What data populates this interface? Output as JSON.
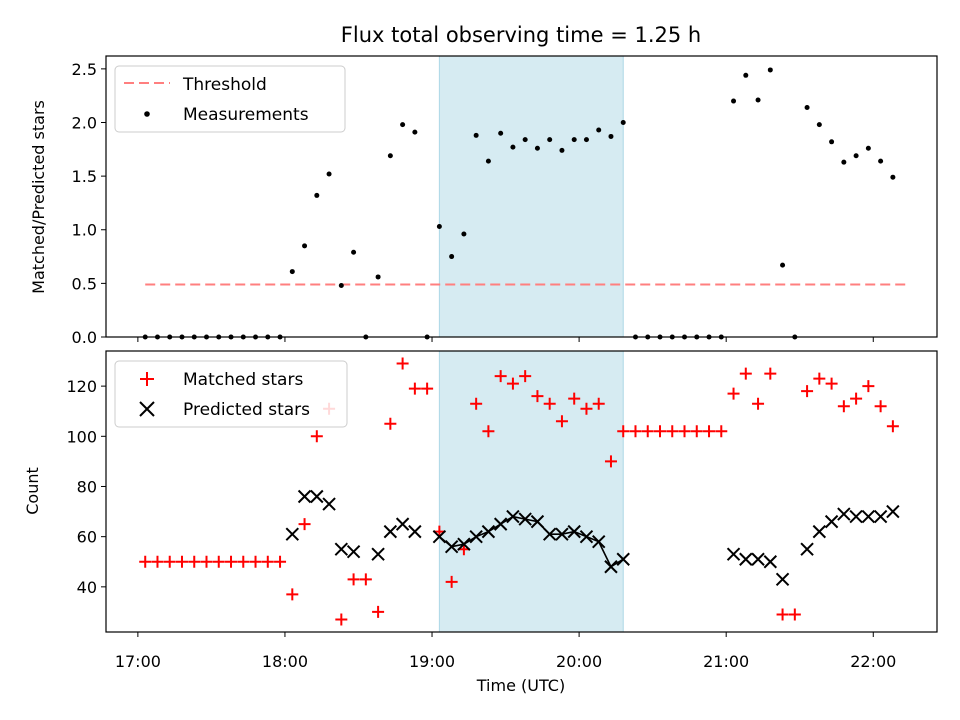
{
  "chart_data": [
    {
      "type": "scatter",
      "title": "Flux total observing time = 1.25 h",
      "xlabel": "",
      "ylabel": "Matched/Predicted stars",
      "ylim": [
        0,
        2.62
      ],
      "yticks": [
        "0.0",
        "0.5",
        "1.0",
        "1.5",
        "2.0",
        "2.5"
      ],
      "legend_position": "top-left",
      "highlight_span": {
        "start": "19:03",
        "end": "20:18"
      },
      "threshold": {
        "name": "Threshold",
        "value": 0.49,
        "x_start": "17:03",
        "x_end": "22:14",
        "color": "#ff7f7f"
      },
      "series": [
        {
          "name": "Measurements",
          "color": "#000000",
          "points": [
            [
              "17:03",
              0
            ],
            [
              "17:08",
              0
            ],
            [
              "17:13",
              0
            ],
            [
              "17:18",
              0
            ],
            [
              "17:23",
              0
            ],
            [
              "17:28",
              0
            ],
            [
              "17:33",
              0
            ],
            [
              "17:38",
              0
            ],
            [
              "17:43",
              0
            ],
            [
              "17:48",
              0
            ],
            [
              "17:53",
              0
            ],
            [
              "17:58",
              0
            ],
            [
              "18:03",
              0.61
            ],
            [
              "18:08",
              0.85
            ],
            [
              "18:13",
              1.32
            ],
            [
              "18:18",
              1.52
            ],
            [
              "18:23",
              0.48
            ],
            [
              "18:28",
              0.79
            ],
            [
              "18:33",
              0
            ],
            [
              "18:38",
              0.56
            ],
            [
              "18:43",
              1.69
            ],
            [
              "18:48",
              1.98
            ],
            [
              "18:53",
              1.91
            ],
            [
              "18:58",
              0
            ],
            [
              "19:03",
              1.03
            ],
            [
              "19:08",
              0.75
            ],
            [
              "19:13",
              0.96
            ],
            [
              "19:18",
              1.88
            ],
            [
              "19:23",
              1.64
            ],
            [
              "19:28",
              1.9
            ],
            [
              "19:33",
              1.77
            ],
            [
              "19:38",
              1.84
            ],
            [
              "19:43",
              1.76
            ],
            [
              "19:48",
              1.84
            ],
            [
              "19:53",
              1.74
            ],
            [
              "19:58",
              1.84
            ],
            [
              "20:03",
              1.84
            ],
            [
              "20:08",
              1.93
            ],
            [
              "20:13",
              1.87
            ],
            [
              "20:18",
              2.0
            ],
            [
              "20:23",
              0
            ],
            [
              "20:28",
              0
            ],
            [
              "20:33",
              0
            ],
            [
              "20:38",
              0
            ],
            [
              "20:43",
              0
            ],
            [
              "20:48",
              0
            ],
            [
              "20:53",
              0
            ],
            [
              "20:58",
              0
            ],
            [
              "21:03",
              2.2
            ],
            [
              "21:08",
              2.44
            ],
            [
              "21:13",
              2.21
            ],
            [
              "21:18",
              2.49
            ],
            [
              "21:23",
              0.67
            ],
            [
              "21:28",
              0
            ],
            [
              "21:33",
              2.14
            ],
            [
              "21:38",
              1.98
            ],
            [
              "21:43",
              1.82
            ],
            [
              "21:48",
              1.63
            ],
            [
              "21:53",
              1.69
            ],
            [
              "21:58",
              1.76
            ],
            [
              "22:03",
              1.64
            ],
            [
              "22:08",
              1.49
            ]
          ]
        }
      ]
    },
    {
      "type": "scatter",
      "title": "",
      "xlabel": "Time (UTC)",
      "ylabel": "Count",
      "xlim": [
        "16:47",
        "22:26"
      ],
      "xticks": [
        "17:00",
        "18:00",
        "19:00",
        "20:00",
        "21:00",
        "22:00"
      ],
      "ylim": [
        22,
        134
      ],
      "yticks": [
        "40",
        "60",
        "80",
        "100",
        "120"
      ],
      "legend_position": "top-left",
      "highlight_span": {
        "start": "19:03",
        "end": "20:18"
      },
      "series": [
        {
          "name": "Matched stars",
          "color": "#ff0000",
          "marker": "plus",
          "points": [
            [
              "17:03",
              50
            ],
            [
              "17:08",
              50
            ],
            [
              "17:13",
              50
            ],
            [
              "17:18",
              50
            ],
            [
              "17:23",
              50
            ],
            [
              "17:28",
              50
            ],
            [
              "17:33",
              50
            ],
            [
              "17:38",
              50
            ],
            [
              "17:43",
              50
            ],
            [
              "17:48",
              50
            ],
            [
              "17:53",
              50
            ],
            [
              "17:58",
              50
            ],
            [
              "18:03",
              37
            ],
            [
              "18:08",
              65
            ],
            [
              "18:13",
              100
            ],
            [
              "18:18",
              111
            ],
            [
              "18:23",
              27
            ],
            [
              "18:28",
              43
            ],
            [
              "18:33",
              43
            ],
            [
              "18:38",
              30
            ],
            [
              "18:43",
              105
            ],
            [
              "18:48",
              129
            ],
            [
              "18:53",
              119
            ],
            [
              "18:58",
              119
            ],
            [
              "19:03",
              62
            ],
            [
              "19:08",
              42
            ],
            [
              "19:13",
              55
            ],
            [
              "19:18",
              113
            ],
            [
              "19:23",
              102
            ],
            [
              "19:28",
              124
            ],
            [
              "19:33",
              121
            ],
            [
              "19:38",
              124
            ],
            [
              "19:43",
              116
            ],
            [
              "19:48",
              113
            ],
            [
              "19:53",
              106
            ],
            [
              "19:58",
              115
            ],
            [
              "20:03",
              111
            ],
            [
              "20:08",
              113
            ],
            [
              "20:13",
              90
            ],
            [
              "20:18",
              102
            ],
            [
              "20:23",
              102
            ],
            [
              "20:28",
              102
            ],
            [
              "20:33",
              102
            ],
            [
              "20:38",
              102
            ],
            [
              "20:43",
              102
            ],
            [
              "20:48",
              102
            ],
            [
              "20:53",
              102
            ],
            [
              "20:58",
              102
            ],
            [
              "21:03",
              117
            ],
            [
              "21:08",
              125
            ],
            [
              "21:13",
              113
            ],
            [
              "21:18",
              125
            ],
            [
              "21:23",
              29
            ],
            [
              "21:28",
              29
            ],
            [
              "21:33",
              118
            ],
            [
              "21:38",
              123
            ],
            [
              "21:43",
              121
            ],
            [
              "21:48",
              112
            ],
            [
              "21:53",
              115
            ],
            [
              "21:58",
              120
            ],
            [
              "22:03",
              112
            ],
            [
              "22:08",
              104
            ]
          ]
        },
        {
          "name": "Predicted stars",
          "color": "#000000",
          "marker": "x",
          "points": [
            [
              "18:03",
              61
            ],
            [
              "18:08",
              76
            ],
            [
              "18:13",
              76
            ],
            [
              "18:18",
              73
            ],
            [
              "18:23",
              55
            ],
            [
              "18:28",
              54
            ],
            [
              "18:38",
              53
            ],
            [
              "18:43",
              62
            ],
            [
              "18:48",
              65
            ],
            [
              "18:53",
              62
            ],
            [
              "19:03",
              60
            ],
            [
              "19:08",
              56
            ],
            [
              "19:13",
              57
            ],
            [
              "19:18",
              60
            ],
            [
              "19:23",
              62
            ],
            [
              "19:28",
              65
            ],
            [
              "19:33",
              68
            ],
            [
              "19:38",
              67
            ],
            [
              "19:43",
              66
            ],
            [
              "19:48",
              61
            ],
            [
              "19:53",
              61
            ],
            [
              "19:58",
              62
            ],
            [
              "20:03",
              60
            ],
            [
              "20:08",
              58
            ],
            [
              "20:13",
              48
            ],
            [
              "20:18",
              51
            ],
            [
              "21:03",
              53
            ],
            [
              "21:08",
              51
            ],
            [
              "21:13",
              51
            ],
            [
              "21:18",
              50
            ],
            [
              "21:23",
              43
            ],
            [
              "21:33",
              55
            ],
            [
              "21:38",
              62
            ],
            [
              "21:43",
              66
            ],
            [
              "21:48",
              69
            ],
            [
              "21:53",
              68
            ],
            [
              "21:58",
              68
            ],
            [
              "22:03",
              68
            ],
            [
              "22:08",
              70
            ]
          ]
        }
      ]
    }
  ]
}
